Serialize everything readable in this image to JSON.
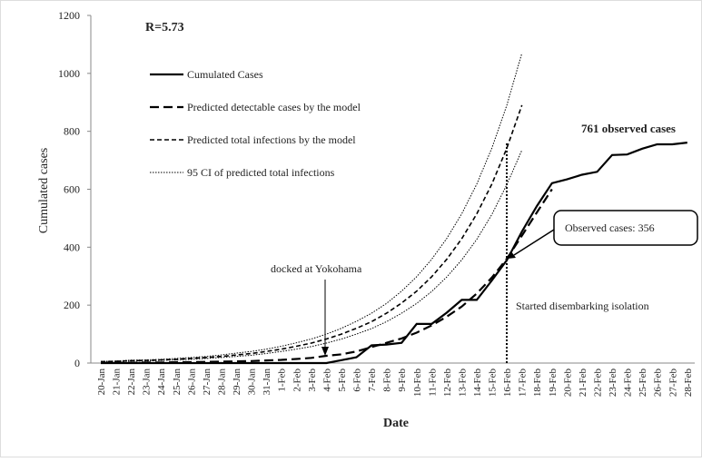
{
  "chart_data": {
    "type": "line",
    "annotations": {
      "r_value": "R=5.73",
      "docked": "docked at Yokohama",
      "observed_box": "Observed cases: 356",
      "disembark": "Started disembarking  isolation",
      "final": "761 observed cases"
    },
    "x_label": "Date",
    "y_label": "Cumulated cases",
    "categories": [
      "20-Jan",
      "21-Jan",
      "22-Jan",
      "23-Jan",
      "24-Jan",
      "25-Jan",
      "26-Jan",
      "27-Jan",
      "28-Jan",
      "29-Jan",
      "30-Jan",
      "31-Jan",
      "1-Feb",
      "2-Feb",
      "3-Feb",
      "4-Feb",
      "5-Feb",
      "6-Feb",
      "7-Feb",
      "8-Feb",
      "9-Feb",
      "10-Feb",
      "11-Feb",
      "12-Feb",
      "13-Feb",
      "14-Feb",
      "15-Feb",
      "16-Feb",
      "17-Feb",
      "18-Feb",
      "19-Feb",
      "20-Feb",
      "21-Feb",
      "22-Feb",
      "23-Feb",
      "24-Feb",
      "25-Feb",
      "26-Feb",
      "27-Feb",
      "28-Feb"
    ],
    "series": [
      {
        "name": "Cumulated Cases",
        "color": "#000000",
        "style": "solid",
        "values": [
          0,
          0,
          0,
          0,
          0,
          0,
          0,
          0,
          0,
          0,
          0,
          0,
          0,
          0,
          0,
          0,
          10,
          20,
          61,
          64,
          70,
          135,
          135,
          174,
          218,
          218,
          285,
          355,
          454,
          542,
          621,
          634,
          650,
          660,
          718,
          720,
          740,
          755,
          755,
          761
        ]
      },
      {
        "name": "Predicted detectable cases by the model",
        "color": "#000000",
        "style": "long-dash",
        "values": [
          1,
          1,
          1,
          2,
          2,
          3,
          3,
          4,
          5,
          6,
          7,
          9,
          11,
          14,
          18,
          25,
          30,
          40,
          55,
          70,
          85,
          105,
          130,
          160,
          195,
          240,
          295,
          360,
          440,
          520,
          600,
          null,
          null,
          null,
          null,
          null,
          null,
          null,
          null,
          null
        ]
      },
      {
        "name": "Predicted total infections by the model",
        "color": "#000000",
        "style": "dash",
        "values": [
          5,
          6,
          8,
          9,
          11,
          13,
          16,
          19,
          23,
          28,
          33,
          40,
          48,
          58,
          69,
          83,
          100,
          120,
          143,
          172,
          207,
          248,
          298,
          358,
          429,
          515,
          618,
          742,
          890,
          null,
          null,
          null,
          null,
          null,
          null,
          null,
          null,
          null,
          null,
          null
        ]
      },
      {
        "name": "95 CI of predicted total infections",
        "color": "#000000",
        "style": "dot",
        "values": [
          6,
          7,
          10,
          11,
          13,
          16,
          19,
          23,
          28,
          34,
          40,
          48,
          58,
          70,
          83,
          100,
          120,
          144,
          172,
          206,
          248,
          298,
          358,
          430,
          515,
          618,
          742,
          890,
          1070,
          null,
          null,
          null,
          null,
          null,
          null,
          null,
          null,
          null,
          null,
          null
        ]
      },
      {
        "color": "#000000",
        "style": "dot",
        "values": [
          4,
          5,
          7,
          7,
          9,
          11,
          13,
          16,
          19,
          23,
          27,
          33,
          40,
          48,
          57,
          69,
          83,
          100,
          119,
          143,
          172,
          206,
          247,
          297,
          356,
          427,
          513,
          616,
          735,
          null,
          null,
          null,
          null,
          null,
          null,
          null,
          null,
          null,
          null,
          null
        ]
      }
    ],
    "ylim": [
      0,
      1200
    ],
    "yticks": [
      0,
      200,
      400,
      600,
      800,
      1000,
      1200
    ],
    "grid": false
  }
}
